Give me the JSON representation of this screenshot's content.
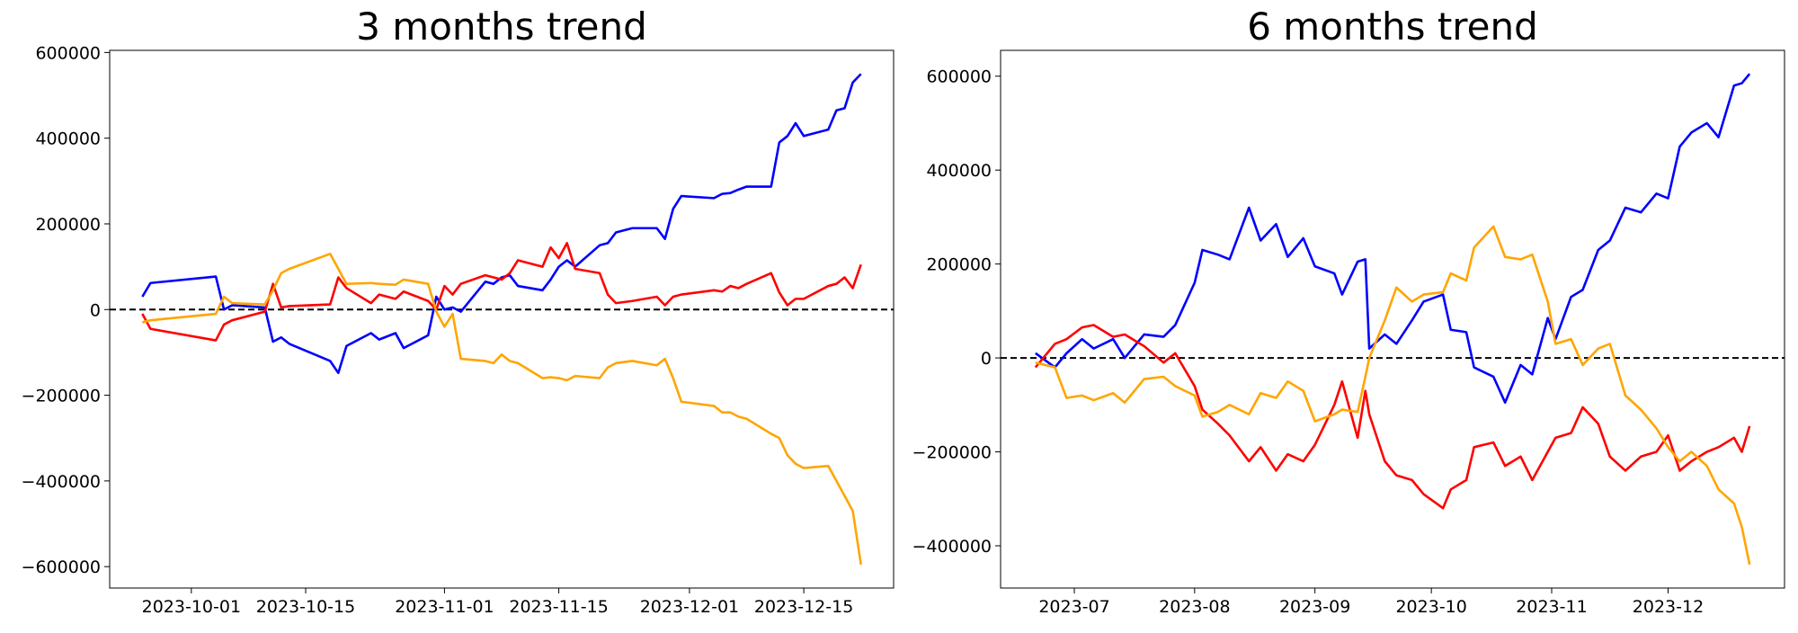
{
  "chart_data": [
    {
      "type": "line",
      "title": "3 months trend",
      "x": [
        "2023-09-25",
        "2023-09-26",
        "2023-10-04",
        "2023-10-05",
        "2023-10-06",
        "2023-10-10",
        "2023-10-11",
        "2023-10-12",
        "2023-10-13",
        "2023-10-18",
        "2023-10-19",
        "2023-10-20",
        "2023-10-23",
        "2023-10-24",
        "2023-10-26",
        "2023-10-27",
        "2023-10-30",
        "2023-10-31",
        "2023-11-01",
        "2023-11-02",
        "2023-11-03",
        "2023-11-06",
        "2023-11-07",
        "2023-11-08",
        "2023-11-09",
        "2023-11-10",
        "2023-11-13",
        "2023-11-14",
        "2023-11-15",
        "2023-11-16",
        "2023-11-17",
        "2023-11-20",
        "2023-11-21",
        "2023-11-22",
        "2023-11-24",
        "2023-11-27",
        "2023-11-28",
        "2023-11-29",
        "2023-11-30",
        "2023-12-04",
        "2023-12-05",
        "2023-12-06",
        "2023-12-07",
        "2023-12-08",
        "2023-12-11",
        "2023-12-12",
        "2023-12-13",
        "2023-12-14",
        "2023-12-15",
        "2023-12-18",
        "2023-12-19",
        "2023-12-20",
        "2023-12-21",
        "2023-12-22"
      ],
      "series": [
        {
          "color": "#0000ff",
          "values": [
            30000,
            62000,
            77000,
            0,
            10000,
            5000,
            -75000,
            -65000,
            -80000,
            -120000,
            -148000,
            -85000,
            -55000,
            -70000,
            -55000,
            -90000,
            -60000,
            30000,
            0,
            5000,
            -5000,
            65000,
            60000,
            75000,
            80000,
            55000,
            45000,
            70000,
            100000,
            115000,
            100000,
            150000,
            155000,
            180000,
            190000,
            190000,
            165000,
            235000,
            265000,
            260000,
            270000,
            272000,
            280000,
            287000,
            287000,
            390000,
            405000,
            435000,
            405000,
            420000,
            465000,
            470000,
            530000,
            550000
          ]
        },
        {
          "color": "#ff0000",
          "values": [
            -10000,
            -45000,
            -72000,
            -35000,
            -25000,
            -5000,
            60000,
            5000,
            8000,
            12000,
            75000,
            50000,
            15000,
            35000,
            25000,
            42000,
            20000,
            0,
            55000,
            35000,
            60000,
            80000,
            75000,
            70000,
            85000,
            115000,
            100000,
            145000,
            120000,
            155000,
            95000,
            85000,
            35000,
            15000,
            20000,
            30000,
            10000,
            30000,
            35000,
            45000,
            42000,
            55000,
            50000,
            60000,
            85000,
            40000,
            10000,
            25000,
            25000,
            55000,
            60000,
            75000,
            50000,
            105000
          ]
        },
        {
          "color": "#ffa500",
          "values": [
            -30000,
            -25000,
            -10000,
            30000,
            15000,
            12000,
            45000,
            85000,
            95000,
            130000,
            95000,
            60000,
            62000,
            60000,
            58000,
            70000,
            60000,
            -5000,
            -40000,
            -10000,
            -115000,
            -120000,
            -125000,
            -105000,
            -120000,
            -125000,
            -160000,
            -158000,
            -160000,
            -165000,
            -155000,
            -160000,
            -135000,
            -125000,
            -120000,
            -130000,
            -115000,
            -160000,
            -215000,
            -225000,
            -240000,
            -240000,
            -250000,
            -255000,
            -290000,
            -300000,
            -340000,
            -360000,
            -370000,
            -365000,
            -400000,
            -435000,
            -470000,
            -595000
          ]
        }
      ],
      "xlim": [
        "2023-09-21",
        "2023-12-26"
      ],
      "ylim": [
        -650000,
        605000
      ],
      "xticks": [
        "2023-10-01",
        "2023-10-15",
        "2023-11-01",
        "2023-11-15",
        "2023-12-01",
        "2023-12-15"
      ],
      "yticks": [
        {
          "value": -600000,
          "label": "−600000"
        },
        {
          "value": -400000,
          "label": "−400000"
        },
        {
          "value": -200000,
          "label": "−200000"
        },
        0,
        200000,
        400000,
        600000
      ],
      "hline": 0
    },
    {
      "type": "line",
      "title": "6 months trend",
      "x": [
        "2023-06-21",
        "2023-06-26",
        "2023-06-29",
        "2023-07-03",
        "2023-07-06",
        "2023-07-11",
        "2023-07-14",
        "2023-07-19",
        "2023-07-24",
        "2023-07-27",
        "2023-08-01",
        "2023-08-03",
        "2023-08-07",
        "2023-08-10",
        "2023-08-15",
        "2023-08-18",
        "2023-08-22",
        "2023-08-25",
        "2023-08-29",
        "2023-09-01",
        "2023-09-06",
        "2023-09-08",
        "2023-09-12",
        "2023-09-14",
        "2023-09-15",
        "2023-09-19",
        "2023-09-22",
        "2023-09-26",
        "2023-09-29",
        "2023-10-04",
        "2023-10-06",
        "2023-10-10",
        "2023-10-12",
        "2023-10-17",
        "2023-10-20",
        "2023-10-24",
        "2023-10-27",
        "2023-10-31",
        "2023-11-02",
        "2023-11-06",
        "2023-11-09",
        "2023-11-13",
        "2023-11-16",
        "2023-11-20",
        "2023-11-24",
        "2023-11-28",
        "2023-12-01",
        "2023-12-04",
        "2023-12-07",
        "2023-12-11",
        "2023-12-14",
        "2023-12-18",
        "2023-12-20",
        "2023-12-22"
      ],
      "series": [
        {
          "color": "#0000ff",
          "values": [
            10000,
            -20000,
            10000,
            40000,
            20000,
            40000,
            0,
            50000,
            45000,
            70000,
            160000,
            230000,
            220000,
            210000,
            320000,
            250000,
            285000,
            215000,
            255000,
            195000,
            180000,
            135000,
            205000,
            210000,
            20000,
            50000,
            30000,
            80000,
            120000,
            135000,
            60000,
            55000,
            -20000,
            -40000,
            -95000,
            -15000,
            -35000,
            85000,
            40000,
            130000,
            145000,
            230000,
            250000,
            320000,
            310000,
            350000,
            340000,
            450000,
            480000,
            500000,
            470000,
            580000,
            585000,
            605000
          ]
        },
        {
          "color": "#ff0000",
          "values": [
            -20000,
            30000,
            40000,
            65000,
            70000,
            45000,
            50000,
            25000,
            -10000,
            10000,
            -60000,
            -110000,
            -140000,
            -165000,
            -220000,
            -190000,
            -240000,
            -205000,
            -220000,
            -185000,
            -100000,
            -50000,
            -170000,
            -70000,
            -120000,
            -220000,
            -250000,
            -260000,
            -290000,
            -320000,
            -280000,
            -260000,
            -190000,
            -180000,
            -230000,
            -210000,
            -260000,
            -200000,
            -170000,
            -160000,
            -105000,
            -140000,
            -210000,
            -240000,
            -210000,
            -200000,
            -165000,
            -240000,
            -220000,
            -200000,
            -190000,
            -170000,
            -200000,
            -145000
          ]
        },
        {
          "color": "#ffa500",
          "values": [
            -10000,
            -20000,
            -85000,
            -80000,
            -90000,
            -75000,
            -95000,
            -45000,
            -40000,
            -60000,
            -80000,
            -125000,
            -115000,
            -100000,
            -120000,
            -75000,
            -85000,
            -50000,
            -70000,
            -135000,
            -120000,
            -110000,
            -115000,
            -40000,
            0,
            80000,
            150000,
            120000,
            135000,
            140000,
            180000,
            165000,
            235000,
            280000,
            215000,
            210000,
            220000,
            120000,
            30000,
            40000,
            -15000,
            20000,
            30000,
            -80000,
            -110000,
            -150000,
            -190000,
            -220000,
            -200000,
            -230000,
            -280000,
            -310000,
            -360000,
            -440000
          ]
        }
      ],
      "xlim": [
        "2023-06-12",
        "2023-12-31"
      ],
      "ylim": [
        -490000,
        655000
      ],
      "xticks": [
        {
          "value": "2023-07-01",
          "label": "2023-07"
        },
        {
          "value": "2023-08-01",
          "label": "2023-08"
        },
        {
          "value": "2023-09-01",
          "label": "2023-09"
        },
        {
          "value": "2023-10-01",
          "label": "2023-10"
        },
        {
          "value": "2023-11-01",
          "label": "2023-11"
        },
        {
          "value": "2023-12-01",
          "label": "2023-12"
        }
      ],
      "yticks": [
        {
          "value": -400000,
          "label": "−400000"
        },
        {
          "value": -200000,
          "label": "−200000"
        },
        0,
        200000,
        400000,
        600000
      ],
      "hline": 0
    }
  ]
}
